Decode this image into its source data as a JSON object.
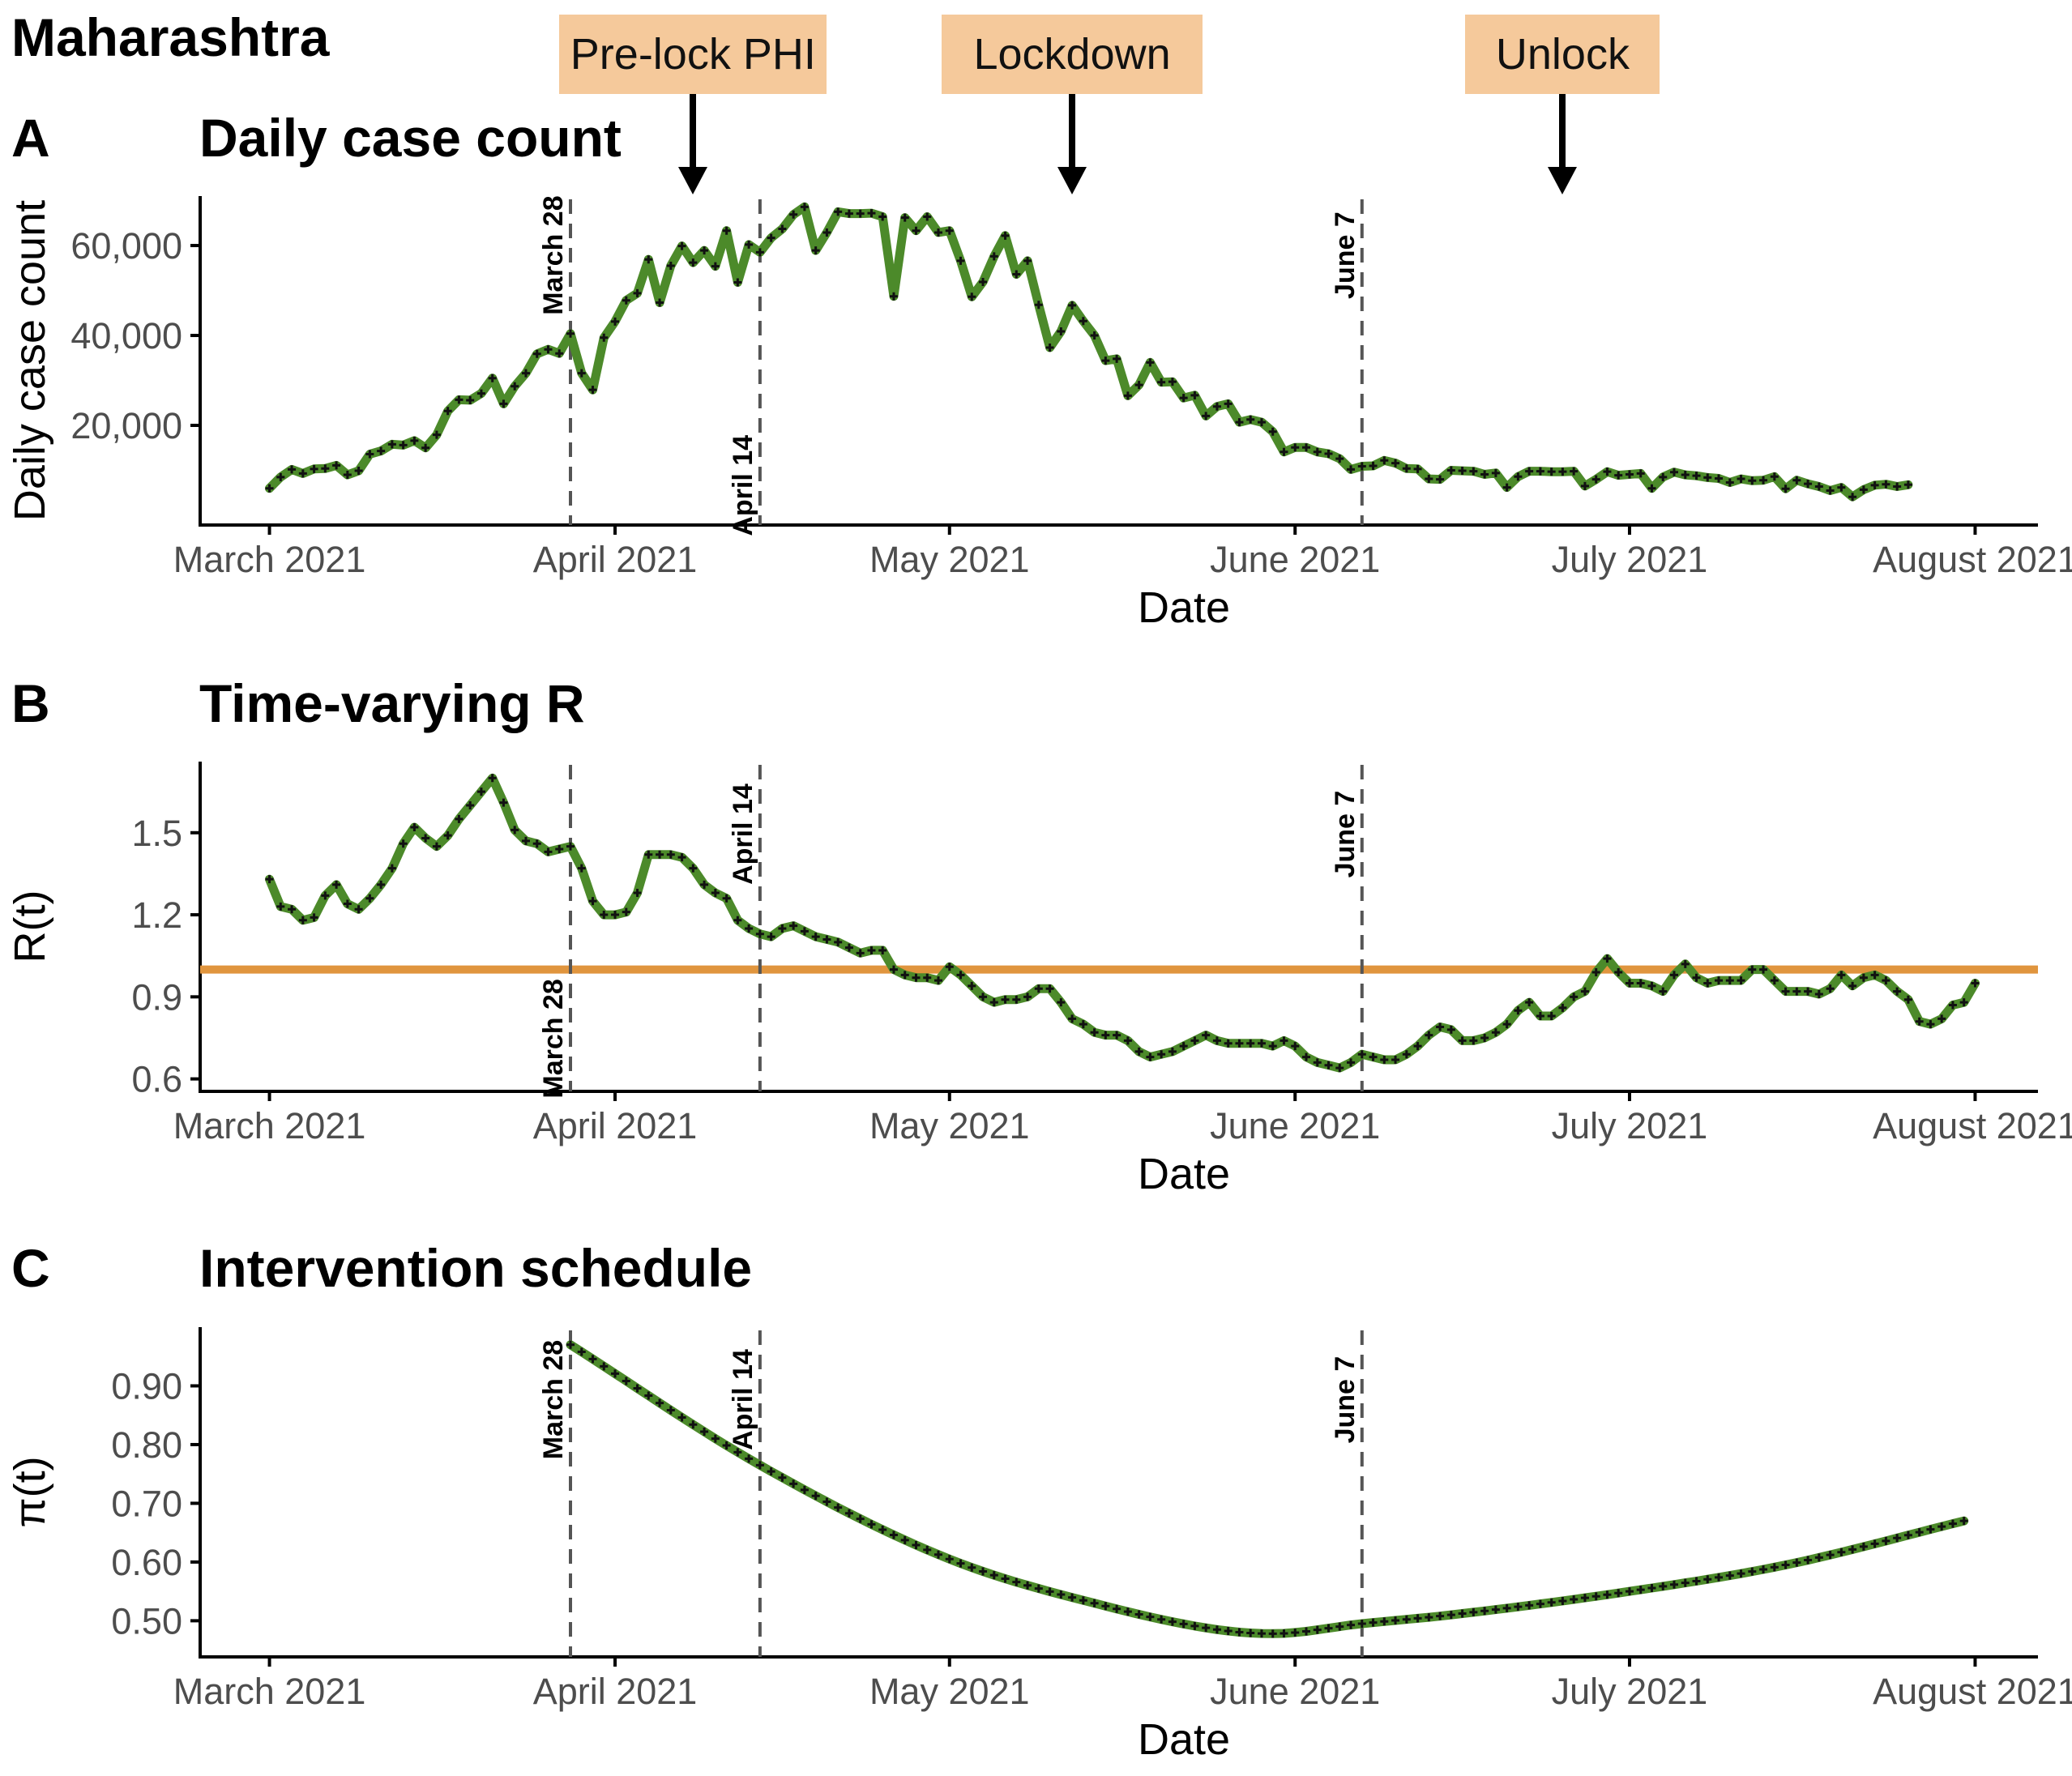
{
  "figure": {
    "title": "Maharashtra",
    "annotations": [
      {
        "label": "Pre-lock PHI",
        "date": "2021-04-08"
      },
      {
        "label": "Lockdown",
        "date": "2021-05-12"
      },
      {
        "label": "Unlock",
        "date": "2021-06-25"
      }
    ]
  },
  "colors": {
    "series": "#4c8a2a",
    "points": "#111111",
    "threshold": "#e0953e",
    "vline": "#555555",
    "annotation_fill": "#f5c99b",
    "axis": "#000000",
    "tick_text": "#4d4d4d"
  },
  "vlines": [
    {
      "date": "2021-03-28",
      "label": "March 28"
    },
    {
      "date": "2021-04-14",
      "label": "April 14"
    },
    {
      "date": "2021-06-07",
      "label": "June 7"
    }
  ],
  "chart_data": [
    {
      "letter": "A",
      "title": "Daily case count",
      "type": "line",
      "xlabel": "Date",
      "ylabel": "Daily case count",
      "xlim": [
        "2021-02-23",
        "2021-08-07"
      ],
      "ylim": [
        0,
        71000
      ],
      "x_ticks": [
        {
          "date": "2021-03-01",
          "label": "March 2021"
        },
        {
          "date": "2021-04-01",
          "label": "April 2021"
        },
        {
          "date": "2021-05-01",
          "label": "May 2021"
        },
        {
          "date": "2021-06-01",
          "label": "June 2021"
        },
        {
          "date": "2021-07-01",
          "label": "July 2021"
        },
        {
          "date": "2021-08-01",
          "label": "August 2021"
        }
      ],
      "y_ticks": [
        {
          "value": 20000,
          "label": "20,000"
        },
        {
          "value": 40000,
          "label": "40,000"
        },
        {
          "value": 60000,
          "label": "60,000"
        }
      ],
      "vline_label_pos": [
        0.82,
        0.12,
        0.82
      ],
      "series": [
        {
          "start_date": "2021-03-01",
          "values": [
            6000,
            8500,
            10200,
            9300,
            10300,
            10400,
            11100,
            9000,
            9900,
            13600,
            14300,
            15800,
            15600,
            16600,
            15000,
            17900,
            23200,
            25700,
            25600,
            27100,
            30500,
            24800,
            28700,
            31600,
            35900,
            36900,
            36000,
            40400,
            31600,
            27900,
            39500,
            43100,
            47800,
            49400,
            56900,
            47300,
            55500,
            59900,
            56200,
            58900,
            55400,
            63300,
            51800,
            60200,
            58500,
            61700,
            63700,
            66900,
            68600,
            58900,
            62900,
            67500,
            67100,
            67100,
            67200,
            66400,
            48700,
            66200,
            63300,
            66400,
            62900,
            63300,
            56600,
            48600,
            51900,
            57600,
            62200,
            53600,
            56600,
            46800,
            37300,
            40900,
            46700,
            43200,
            40000,
            34400,
            34800,
            26600,
            29000,
            34000,
            29600,
            29700,
            26100,
            26700,
            22100,
            24200,
            24800,
            20700,
            21300,
            20700,
            18600,
            14100,
            15100,
            15100,
            14100,
            13700,
            12600,
            10200,
            10900,
            11000,
            12200,
            11600,
            10400,
            10300,
            8100,
            8000,
            10000,
            9900,
            9800,
            9100,
            9400,
            6200,
            8600,
            9800,
            9800,
            9700,
            9700,
            9800,
            6500,
            8000,
            9700,
            8900,
            9100,
            9300,
            6000,
            8500,
            9600,
            9000,
            8800,
            8400,
            8200,
            7300,
            8100,
            7700,
            7800,
            8600,
            5900,
            7800,
            7000,
            6400,
            5500,
            6200,
            4100,
            5700,
            6700,
            6900,
            6400,
            6800
          ]
        }
      ]
    },
    {
      "letter": "B",
      "title": "Time-varying R",
      "type": "line",
      "xlabel": "Date",
      "ylabel": "R(t)",
      "xlim": [
        "2021-02-23",
        "2021-08-07"
      ],
      "ylim": [
        0.59,
        1.76
      ],
      "reference_line": 1.0,
      "x_ticks": [
        {
          "date": "2021-03-01",
          "label": "March 2021"
        },
        {
          "date": "2021-04-01",
          "label": "April 2021"
        },
        {
          "date": "2021-05-01",
          "label": "May 2021"
        },
        {
          "date": "2021-06-01",
          "label": "June 2021"
        },
        {
          "date": "2021-07-01",
          "label": "July 2021"
        },
        {
          "date": "2021-08-01",
          "label": "August 2021"
        }
      ],
      "y_ticks": [
        {
          "value": 0.6,
          "label": "0.6"
        },
        {
          "value": 0.9,
          "label": "0.9"
        },
        {
          "value": 1.2,
          "label": "1.2"
        },
        {
          "value": 1.5,
          "label": "1.5"
        }
      ],
      "vline_label_pos": [
        0.16,
        0.78,
        0.78
      ],
      "series": [
        {
          "start_date": "2021-03-01",
          "values": [
            1.33,
            1.23,
            1.22,
            1.18,
            1.19,
            1.27,
            1.31,
            1.24,
            1.22,
            1.26,
            1.31,
            1.37,
            1.46,
            1.52,
            1.48,
            1.45,
            1.49,
            1.55,
            1.6,
            1.65,
            1.7,
            1.61,
            1.51,
            1.47,
            1.46,
            1.43,
            1.44,
            1.45,
            1.37,
            1.25,
            1.2,
            1.2,
            1.21,
            1.28,
            1.42,
            1.42,
            1.42,
            1.41,
            1.37,
            1.31,
            1.28,
            1.26,
            1.18,
            1.15,
            1.13,
            1.12,
            1.15,
            1.16,
            1.14,
            1.12,
            1.11,
            1.1,
            1.08,
            1.06,
            1.07,
            1.07,
            1.0,
            0.98,
            0.97,
            0.97,
            0.96,
            1.01,
            0.98,
            0.94,
            0.9,
            0.88,
            0.89,
            0.89,
            0.9,
            0.93,
            0.93,
            0.88,
            0.82,
            0.8,
            0.77,
            0.76,
            0.76,
            0.74,
            0.7,
            0.68,
            0.69,
            0.7,
            0.72,
            0.74,
            0.76,
            0.74,
            0.73,
            0.73,
            0.73,
            0.73,
            0.72,
            0.74,
            0.72,
            0.68,
            0.66,
            0.65,
            0.64,
            0.66,
            0.69,
            0.68,
            0.67,
            0.67,
            0.69,
            0.72,
            0.76,
            0.79,
            0.78,
            0.74,
            0.74,
            0.75,
            0.77,
            0.8,
            0.85,
            0.88,
            0.83,
            0.83,
            0.86,
            0.9,
            0.92,
            0.99,
            1.04,
            0.99,
            0.95,
            0.95,
            0.94,
            0.92,
            0.98,
            1.02,
            0.97,
            0.95,
            0.96,
            0.96,
            0.96,
            1.0,
            1.0,
            0.96,
            0.92,
            0.92,
            0.92,
            0.91,
            0.93,
            0.98,
            0.94,
            0.97,
            0.98,
            0.96,
            0.92,
            0.89,
            0.81,
            0.8,
            0.82,
            0.87,
            0.88,
            0.95
          ]
        }
      ]
    },
    {
      "letter": "C",
      "title": "Intervention schedule",
      "type": "line",
      "xlabel": "Date",
      "ylabel": "π(t)",
      "xlim": [
        "2021-02-23",
        "2021-08-07"
      ],
      "ylim": [
        0.455,
        1.0
      ],
      "x_ticks": [
        {
          "date": "2021-03-01",
          "label": "March 2021"
        },
        {
          "date": "2021-04-01",
          "label": "April 2021"
        },
        {
          "date": "2021-05-01",
          "label": "May 2021"
        },
        {
          "date": "2021-06-01",
          "label": "June 2021"
        },
        {
          "date": "2021-07-01",
          "label": "July 2021"
        },
        {
          "date": "2021-08-01",
          "label": "August 2021"
        }
      ],
      "y_ticks": [
        {
          "value": 0.5,
          "label": "0.50"
        },
        {
          "value": 0.6,
          "label": "0.60"
        },
        {
          "value": 0.7,
          "label": "0.70"
        },
        {
          "value": 0.8,
          "label": "0.80"
        },
        {
          "value": 0.9,
          "label": "0.90"
        }
      ],
      "vline_label_pos": [
        0.78,
        0.78,
        0.78
      ],
      "series": [
        {
          "start_date": "2021-03-28",
          "curve": [
            {
              "date": "2021-03-28",
              "value": 0.97
            },
            {
              "date": "2021-04-14",
              "value": 0.765
            },
            {
              "date": "2021-05-01",
              "value": 0.605
            },
            {
              "date": "2021-05-15",
              "value": 0.525
            },
            {
              "date": "2021-05-25",
              "value": 0.485
            },
            {
              "date": "2021-05-30",
              "value": 0.478
            },
            {
              "date": "2021-06-07",
              "value": 0.495
            },
            {
              "date": "2021-06-15",
              "value": 0.51
            },
            {
              "date": "2021-07-01",
              "value": 0.55
            },
            {
              "date": "2021-07-15",
              "value": 0.595
            },
            {
              "date": "2021-07-31",
              "value": 0.67
            }
          ]
        }
      ]
    }
  ]
}
